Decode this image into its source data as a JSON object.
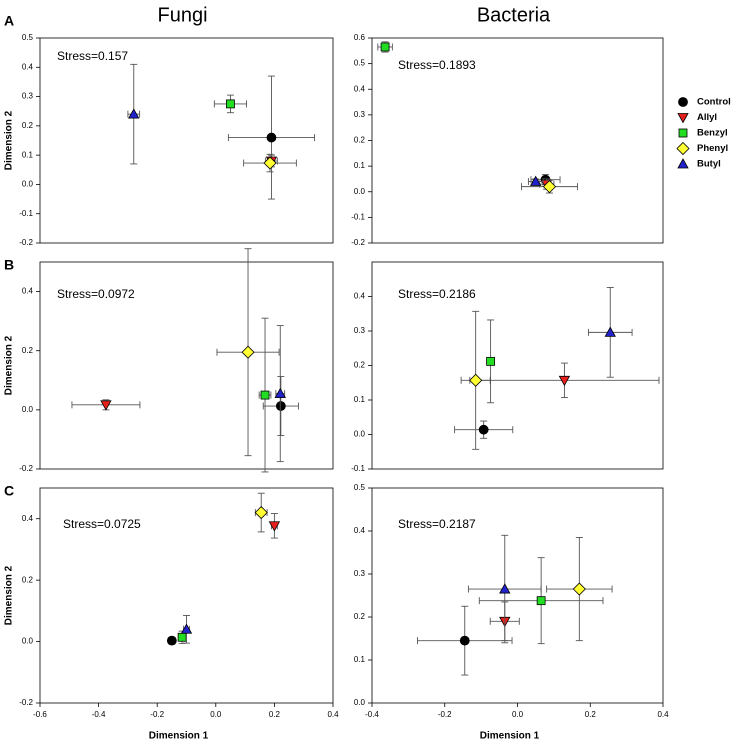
{
  "legend": [
    {
      "name": "Control",
      "color": "#000000",
      "marker": "circle"
    },
    {
      "name": "Allyl",
      "color": "#e8201c",
      "marker": "triangle-down"
    },
    {
      "name": "Benzyl",
      "color": "#22dd22",
      "marker": "square"
    },
    {
      "name": "Phenyl",
      "color": "#ffff33",
      "marker": "diamond"
    },
    {
      "name": "Butyl",
      "color": "#2222cc",
      "marker": "triangle-up"
    }
  ],
  "chart_data": [
    {
      "type": "scatter",
      "title": "Fungi",
      "panel": "A",
      "ylabel": "Dimension 2",
      "annotation": "Stress=0.157",
      "xlim": [
        -0.6,
        0.4
      ],
      "ylim": [
        -0.2,
        0.5
      ],
      "yticks": [
        -0.2,
        -0.1,
        {
          "value": 0,
          "label": "0.0"
        },
        0.1,
        0.2,
        0.3,
        0.4,
        0.5
      ],
      "series": [
        {
          "x": 0.19,
          "y": 0.16,
          "xerr": 0.147,
          "yerr": 0.21
        },
        {
          "x": 0.19,
          "y": 0.08,
          "xerr": 0.02,
          "yerr": 0.02
        },
        {
          "x": 0.05,
          "y": 0.275,
          "xerr": 0.055,
          "yerr": 0.03
        },
        {
          "x": 0.185,
          "y": 0.073,
          "xerr": 0.09,
          "yerr": 0.03
        },
        {
          "x": -0.28,
          "y": 0.24,
          "xerr": 0.02,
          "yerr": 0.17
        }
      ]
    },
    {
      "type": "scatter",
      "title": "Bacteria",
      "annotation": "Stress=0.1893",
      "xlim": [
        -0.4,
        0.4
      ],
      "ylim": [
        -0.2,
        0.6
      ],
      "yticks": [
        -0.2,
        -0.1,
        {
          "value": 0,
          "label": "0.0"
        },
        0.1,
        0.2,
        0.3,
        0.4,
        0.5,
        0.6
      ],
      "series": [
        {
          "x": 0.077,
          "y": 0.047,
          "xerr": 0.04,
          "yerr": 0.02
        },
        {
          "x": 0.08,
          "y": 0.03,
          "xerr": 0.02,
          "yerr": 0.02
        },
        {
          "x": -0.364,
          "y": 0.565,
          "xerr": 0.02,
          "yerr": 0.02
        },
        {
          "x": 0.088,
          "y": 0.02,
          "xerr": 0.077,
          "yerr": 0.025
        },
        {
          "x": 0.05,
          "y": 0.04,
          "xerr": 0.02,
          "yerr": 0.01
        }
      ]
    },
    {
      "type": "scatter",
      "panel": "B",
      "ylabel": "Dimension 2",
      "annotation": "Stress=0.0972",
      "xlim": [
        -0.6,
        0.4
      ],
      "ylim": [
        -0.2,
        0.5
      ],
      "yticks": [
        -0.2,
        {
          "value": 0,
          "label": "0.0"
        },
        0.2,
        0.4
      ],
      "series": [
        {
          "x": 0.222,
          "y": 0.013,
          "xerr": 0.06,
          "yerr": 0.1
        },
        {
          "x": -0.375,
          "y": 0.017,
          "xerr": 0.116,
          "yerr": 0.017
        },
        {
          "x": 0.168,
          "y": 0.05,
          "xerr": 0.02,
          "yerr": 0.26
        },
        {
          "x": 0.11,
          "y": 0.195,
          "xerr": 0.106,
          "yerr": 0.35
        },
        {
          "x": 0.22,
          "y": 0.055,
          "xerr": 0.015,
          "yerr": 0.23
        }
      ]
    },
    {
      "type": "scatter",
      "annotation": "Stress=0.2186",
      "xlim": [
        -0.4,
        0.4
      ],
      "ylim": [
        -0.1,
        0.5
      ],
      "yticks": [
        -0.1,
        {
          "value": 0,
          "label": "0.0"
        },
        0.1,
        0.2,
        0.3,
        0.4
      ],
      "series": [
        {
          "x": -0.093,
          "y": 0.014,
          "xerr": 0.08,
          "yerr": 0.025
        },
        {
          "x": 0.129,
          "y": 0.157,
          "xerr": 0.26,
          "yerr": 0.05
        },
        {
          "x": -0.074,
          "y": 0.212,
          "xerr": 0.01,
          "yerr": 0.12
        },
        {
          "x": -0.115,
          "y": 0.157,
          "xerr": 0.04,
          "yerr": 0.2
        },
        {
          "x": 0.255,
          "y": 0.296,
          "xerr": 0.06,
          "yerr": 0.13
        }
      ]
    },
    {
      "type": "scatter",
      "panel": "C",
      "ylabel": "Dimension 2",
      "xlabel": "Dimension 1",
      "annotation": "Stress=0.0725",
      "xlim": [
        -0.6,
        0.4
      ],
      "ylim": [
        -0.2,
        0.5
      ],
      "xticks": [
        -0.6,
        -0.4,
        -0.2,
        {
          "value": 0,
          "label": "0.0"
        },
        0.2,
        0.4
      ],
      "yticks": [
        -0.2,
        {
          "value": 0,
          "label": "0.0"
        },
        0.2,
        0.4
      ],
      "series": [
        {
          "x": -0.15,
          "y": 0.003,
          "xerr": 0.01,
          "yerr": 0.01
        },
        {
          "x": 0.2,
          "y": 0.377,
          "xerr": 0.01,
          "yerr": 0.04
        },
        {
          "x": -0.115,
          "y": 0.014,
          "xerr": 0.01,
          "yerr": 0.02
        },
        {
          "x": 0.155,
          "y": 0.42,
          "xerr": 0.02,
          "yerr": 0.063
        },
        {
          "x": -0.1,
          "y": 0.04,
          "xerr": 0.01,
          "yerr": 0.045
        }
      ]
    },
    {
      "type": "scatter",
      "xlabel": "Dimension 1",
      "annotation": "Stress=0.2187",
      "xlim": [
        -0.4,
        0.4
      ],
      "ylim": [
        0,
        0.5
      ],
      "xticks": [
        -0.4,
        -0.2,
        {
          "value": 0,
          "label": "0.0"
        },
        0.2,
        0.4
      ],
      "yticks": [
        {
          "value": 0,
          "label": "0.0"
        },
        0.1,
        0.2,
        0.3,
        0.4,
        0.5
      ],
      "series": [
        {
          "x": -0.145,
          "y": 0.145,
          "xerr": 0.13,
          "yerr": 0.08
        },
        {
          "x": -0.035,
          "y": 0.19,
          "xerr": 0.04,
          "yerr": 0.045
        },
        {
          "x": 0.065,
          "y": 0.238,
          "xerr": 0.17,
          "yerr": 0.1
        },
        {
          "x": 0.17,
          "y": 0.265,
          "xerr": 0.09,
          "yerr": 0.12
        },
        {
          "x": -0.035,
          "y": 0.265,
          "xerr": 0.1,
          "yerr": 0.125
        }
      ]
    }
  ]
}
